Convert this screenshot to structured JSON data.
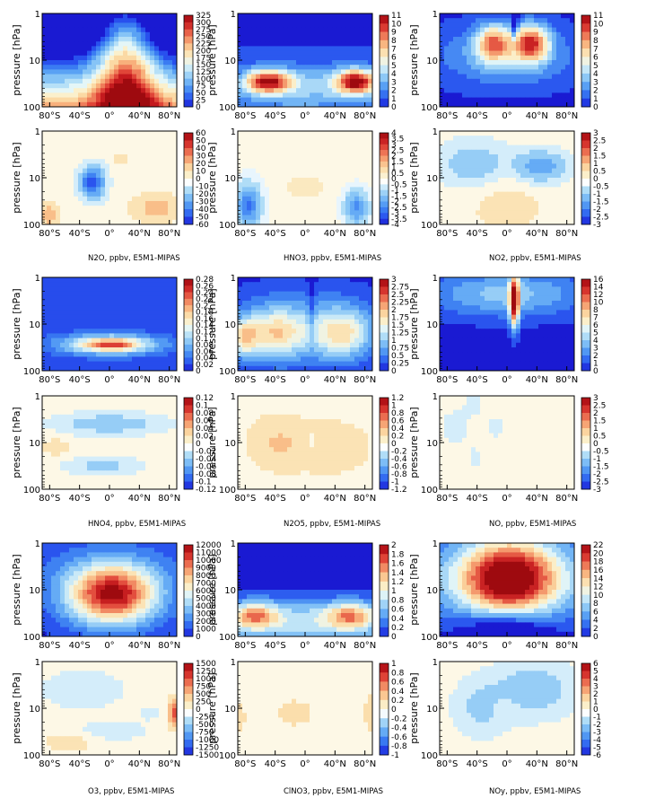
{
  "chart_data": {
    "type": "heatmap",
    "common": {
      "ylabel": "pressure [hPa]",
      "xticks": [
        "80°S",
        "40°S",
        "0°",
        "40°N",
        "80°N"
      ],
      "yticks": [
        "1",
        "10",
        "100"
      ],
      "x_range_deg": [
        -90,
        90
      ],
      "y_range_hpa": [
        1,
        100
      ],
      "y_scale": "log",
      "y_inverted": true,
      "colormap_sequential": [
        "#1a1ad2",
        "#2850ee",
        "#3a7bf2",
        "#5aa2f4",
        "#86c4f6",
        "#b6e0f7",
        "#e4f6f7",
        "#fbf0cc",
        "#fbd9a4",
        "#f8b07c",
        "#ef7d5a",
        "#e04538",
        "#c41a1e",
        "#9e0a0f"
      ],
      "colormap_diverging": [
        "#1a1ad2",
        "#2850ee",
        "#3a7bf2",
        "#5aa2f4",
        "#86c4f6",
        "#b6e0f7",
        "#ffffff",
        "#fbf0cc",
        "#fbd9a4",
        "#f8b07c",
        "#ef7d5a",
        "#e04538",
        "#c41a1e",
        "#9e0a0f"
      ]
    },
    "groups": [
      {
        "panels": [
          {
            "id": "n2o-abs",
            "species": "N2O",
            "kind": "absolute",
            "colorbar": [
              "325",
              "300",
              "275",
              "250",
              "225",
              "200",
              "175",
              "150",
              "125",
              "100",
              "75",
              "50",
              "25",
              "0"
            ]
          },
          {
            "id": "hno3-abs",
            "species": "HNO3",
            "kind": "absolute",
            "colorbar": [
              "11",
              "10",
              "9",
              "8",
              "7",
              "6",
              "5",
              "4",
              "3",
              "2",
              "1",
              "0"
            ]
          },
          {
            "id": "no2-abs",
            "species": "NO2",
            "kind": "absolute",
            "colorbar": [
              "11",
              "10",
              "9",
              "8",
              "7",
              "6",
              "5",
              "4",
              "3",
              "2",
              "1",
              "0"
            ]
          },
          {
            "id": "n2o-diff",
            "species": "N2O",
            "kind": "difference",
            "colorbar": [
              "60",
              "50",
              "40",
              "30",
              "20",
              "10",
              "0",
              "-10",
              "-20",
              "-30",
              "-40",
              "-50",
              "-60"
            ]
          },
          {
            "id": "hno3-diff",
            "species": "HNO3",
            "kind": "difference",
            "colorbar": [
              "4",
              "3.5",
              "3",
              "2.5",
              "2",
              "1.5",
              "1",
              "0.5",
              "0",
              "-0.5",
              "-1",
              "-1.5",
              "-2",
              "-2.5",
              "-3",
              "-3.5",
              "-4"
            ]
          },
          {
            "id": "no2-diff",
            "species": "NO2",
            "kind": "difference",
            "colorbar": [
              "3",
              "2.5",
              "2",
              "1.5",
              "1",
              "0.5",
              "0",
              "-0.5",
              "-1",
              "-1.5",
              "-2",
              "-2.5",
              "-3"
            ]
          }
        ],
        "captions": [
          "N2O, ppbv, E5M1-MIPAS",
          "HNO3, ppbv, E5M1-MIPAS",
          "NO2, ppbv, E5M1-MIPAS"
        ]
      },
      {
        "panels": [
          {
            "id": "hno4-abs",
            "species": "HNO4",
            "kind": "absolute",
            "colorbar": [
              "0.28",
              "0.26",
              "0.24",
              "0.22",
              "0.2",
              "0.18",
              "0.16",
              "0.14",
              "0.12",
              "0.1",
              "0.08",
              "0.06",
              "0.04",
              "0.02",
              "0"
            ]
          },
          {
            "id": "n2o5-abs",
            "species": "N2O5",
            "kind": "absolute",
            "colorbar": [
              "3",
              "2.75",
              "2.5",
              "2.25",
              "2",
              "1.75",
              "1.5",
              "1.25",
              "1",
              "0.75",
              "0.5",
              "0.25",
              "0"
            ]
          },
          {
            "id": "no-abs",
            "species": "NO",
            "kind": "absolute",
            "colorbar": [
              "16",
              "14",
              "12",
              "10",
              "8",
              "7",
              "6",
              "5",
              "4",
              "3",
              "2",
              "1",
              "0"
            ]
          },
          {
            "id": "hno4-diff",
            "species": "HNO4",
            "kind": "difference",
            "colorbar": [
              "0.12",
              "0.1",
              "0.08",
              "0.06",
              "0.04",
              "0.02",
              "0",
              "-0.02",
              "-0.04",
              "-0.06",
              "-0.08",
              "-0.1",
              "-0.12"
            ]
          },
          {
            "id": "n2o5-diff",
            "species": "N2O5",
            "kind": "difference",
            "colorbar": [
              "1.2",
              "1",
              "0.8",
              "0.6",
              "0.4",
              "0.2",
              "0",
              "-0.2",
              "-0.4",
              "-0.6",
              "-0.8",
              "-1",
              "-1.2"
            ]
          },
          {
            "id": "no-diff",
            "species": "NO",
            "kind": "difference",
            "colorbar": [
              "3",
              "2.5",
              "2",
              "1.5",
              "1",
              "0.5",
              "0",
              "-0.5",
              "-1",
              "-1.5",
              "-2",
              "-2.5",
              "-3"
            ]
          }
        ],
        "captions": [
          "HNO4, ppbv, E5M1-MIPAS",
          "N2O5, ppbv, E5M1-MIPAS",
          "NO, ppbv, E5M1-MIPAS"
        ]
      },
      {
        "panels": [
          {
            "id": "o3-abs",
            "species": "O3",
            "kind": "absolute",
            "colorbar": [
              "12000",
              "11000",
              "10000",
              "9000",
              "8000",
              "7000",
              "6000",
              "5000",
              "4000",
              "3000",
              "2000",
              "1000",
              "0"
            ]
          },
          {
            "id": "clono2-abs",
            "species": "ClNO3",
            "kind": "absolute",
            "colorbar": [
              "2",
              "1.8",
              "1.6",
              "1.4",
              "1.2",
              "1",
              "0.8",
              "0.6",
              "0.4",
              "0.2",
              "0"
            ]
          },
          {
            "id": "noy-abs",
            "species": "NOy",
            "kind": "absolute",
            "colorbar": [
              "22",
              "20",
              "18",
              "16",
              "14",
              "12",
              "10",
              "8",
              "6",
              "4",
              "2",
              "0"
            ]
          },
          {
            "id": "o3-diff",
            "species": "O3",
            "kind": "difference",
            "colorbar": [
              "1500",
              "1250",
              "1000",
              "750",
              "500",
              "250",
              "0",
              "-250",
              "-500",
              "-750",
              "-1000",
              "-1250",
              "-1500"
            ]
          },
          {
            "id": "clono2-diff",
            "species": "ClNO3",
            "kind": "difference",
            "colorbar": [
              "1",
              "0.8",
              "0.6",
              "0.4",
              "0.2",
              "0",
              "-0.2",
              "-0.4",
              "-0.6",
              "-0.8",
              "-1"
            ]
          },
          {
            "id": "noy-diff",
            "species": "NOy",
            "kind": "difference",
            "colorbar": [
              "6",
              "5",
              "4",
              "3",
              "2",
              "1",
              "0",
              "-1",
              "-2",
              "-3",
              "-4",
              "-5",
              "-6"
            ]
          }
        ],
        "captions": [
          "O3, ppbv, E5M1-MIPAS",
          "ClNO3, ppbv, E5M1-MIPAS",
          "NOy, ppbv, E5M1-MIPAS"
        ]
      }
    ]
  }
}
